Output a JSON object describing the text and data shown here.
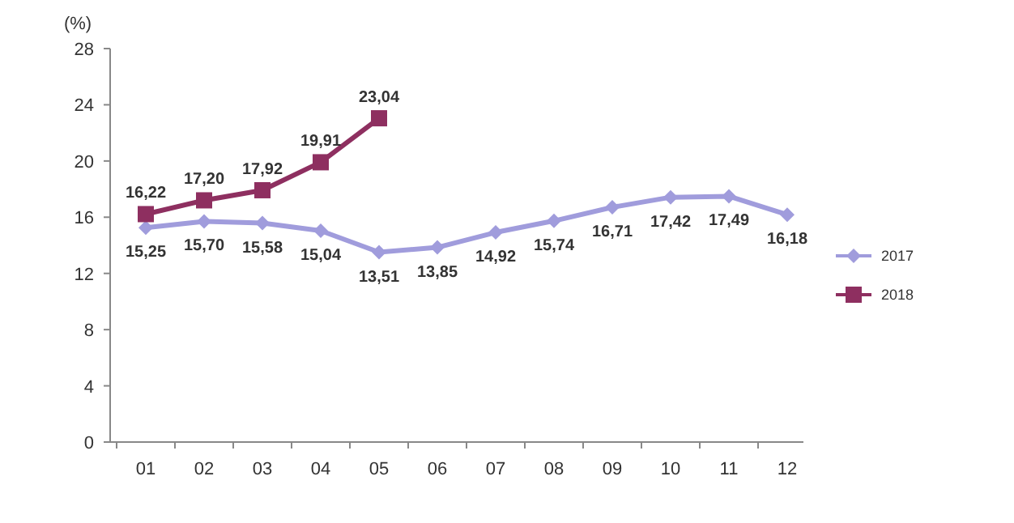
{
  "chart_data": {
    "type": "line",
    "ylabel": "(%)",
    "categories": [
      "01",
      "02",
      "03",
      "04",
      "05",
      "06",
      "07",
      "08",
      "09",
      "10",
      "11",
      "12"
    ],
    "ylim": [
      0,
      28
    ],
    "yticks": [
      0,
      4,
      8,
      12,
      16,
      20,
      24,
      28
    ],
    "grid": false,
    "legend": "right",
    "series": [
      {
        "name": "2017",
        "color": "#a09cdc",
        "marker": "diamond",
        "values": [
          15.25,
          15.7,
          15.58,
          15.04,
          13.51,
          13.85,
          14.92,
          15.74,
          16.71,
          17.42,
          17.49,
          16.18
        ],
        "value_labels": [
          "15,25",
          "15,70",
          "15,58",
          "15,04",
          "13,51",
          "13,85",
          "14,92",
          "15,74",
          "16,71",
          "17,42",
          "17,49",
          "16,18"
        ]
      },
      {
        "name": "2018",
        "color": "#8e2f60",
        "marker": "square",
        "values": [
          16.22,
          17.2,
          17.92,
          19.91,
          23.04,
          null,
          null,
          null,
          null,
          null,
          null,
          null
        ],
        "value_labels": [
          "16,22",
          "17,20",
          "17,92",
          "19,91",
          "23,04",
          null,
          null,
          null,
          null,
          null,
          null,
          null
        ]
      }
    ]
  }
}
